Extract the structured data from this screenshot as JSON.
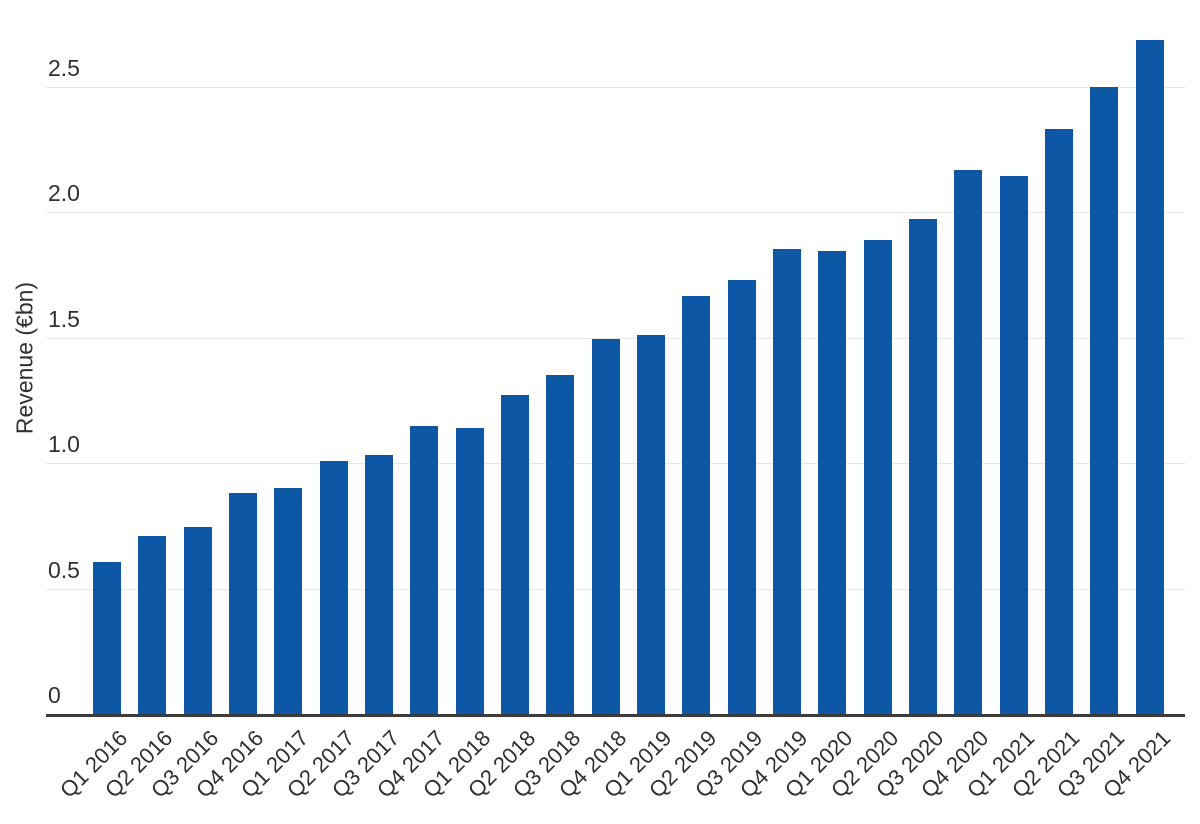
{
  "chart_data": {
    "type": "bar",
    "title": "",
    "xlabel": "",
    "ylabel": "Revenue (€bn)",
    "categories": [
      "Q1 2016",
      "Q2 2016",
      "Q3 2016",
      "Q4 2016",
      "Q1 2017",
      "Q2 2017",
      "Q3 2017",
      "Q4 2017",
      "Q1 2018",
      "Q2 2018",
      "Q3 2018",
      "Q4 2018",
      "Q1 2019",
      "Q2 2019",
      "Q3 2019",
      "Q4 2019",
      "Q1 2020",
      "Q2 2020",
      "Q3 2020",
      "Q4 2020",
      "Q1 2021",
      "Q2 2021",
      "Q3 2021",
      "Q4 2021"
    ],
    "values": [
      0.608,
      0.711,
      0.747,
      0.88,
      0.902,
      1.007,
      1.032,
      1.149,
      1.139,
      1.273,
      1.352,
      1.495,
      1.511,
      1.667,
      1.731,
      1.855,
      1.848,
      1.889,
      1.975,
      2.168,
      2.147,
      2.331,
      2.501,
      2.689
    ],
    "y_ticks": [
      {
        "value": 0,
        "label": "0"
      },
      {
        "value": 0.5,
        "label": "0.5"
      },
      {
        "value": 1.0,
        "label": "1.0"
      },
      {
        "value": 1.5,
        "label": "1.5"
      },
      {
        "value": 2.0,
        "label": "2.0"
      },
      {
        "value": 2.5,
        "label": "2.5"
      }
    ],
    "ylim": [
      0,
      2.85
    ],
    "grid": "horizontal-only",
    "legend": "none",
    "x_tick_rotation": 45
  },
  "colors": {
    "bar": "#0d57a5",
    "gridline": "#e8e8e8",
    "axis_line": "#3b3b3b",
    "text": "#303030",
    "background": "#ffffff"
  }
}
